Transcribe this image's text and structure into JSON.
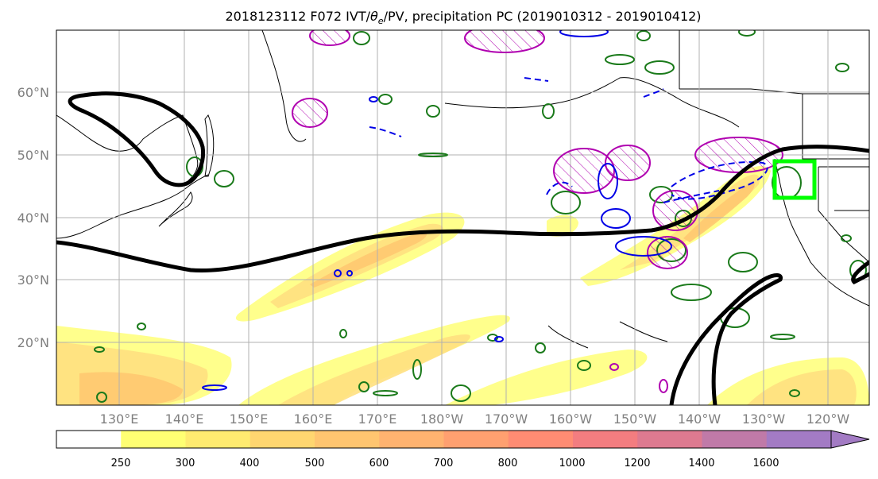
{
  "title_main": "2018123112 F072 IVT/",
  "title_theta": "θ",
  "title_theta_sub": "e",
  "title_rest": "/PV, precipitation PC (2019010312 - 2019010412)",
  "lat_labels": [
    "60°N",
    "50°N",
    "40°N",
    "30°N",
    "20°N"
  ],
  "lon_labels": [
    "130°E",
    "140°E",
    "150°E",
    "160°E",
    "170°E",
    "180°W",
    "170°W",
    "160°W",
    "150°W",
    "140°W",
    "130°W",
    "120°W"
  ],
  "colorbar": {
    "ticks": [
      "250",
      "300",
      "400",
      "500",
      "600",
      "700",
      "800",
      "1000",
      "1200",
      "1400",
      "1600"
    ],
    "colors": [
      "#ffffff",
      "#ffff73",
      "#ffeb70",
      "#ffd670",
      "#ffc570",
      "#ffb370",
      "#ffa070",
      "#ff8c73",
      "#f37d80",
      "#dd7a90",
      "#c07aa8",
      "#a37bc4"
    ]
  },
  "colors": {
    "ivt_fill": "#ffd700",
    "pv_line": "#000000",
    "theta_pos": "#1a7a1a",
    "precip_pc": "#b000b0",
    "neg_contour": "#0000e6",
    "target_box": "#00ff00",
    "grid": "#b0b0b0",
    "label": "#808080"
  }
}
